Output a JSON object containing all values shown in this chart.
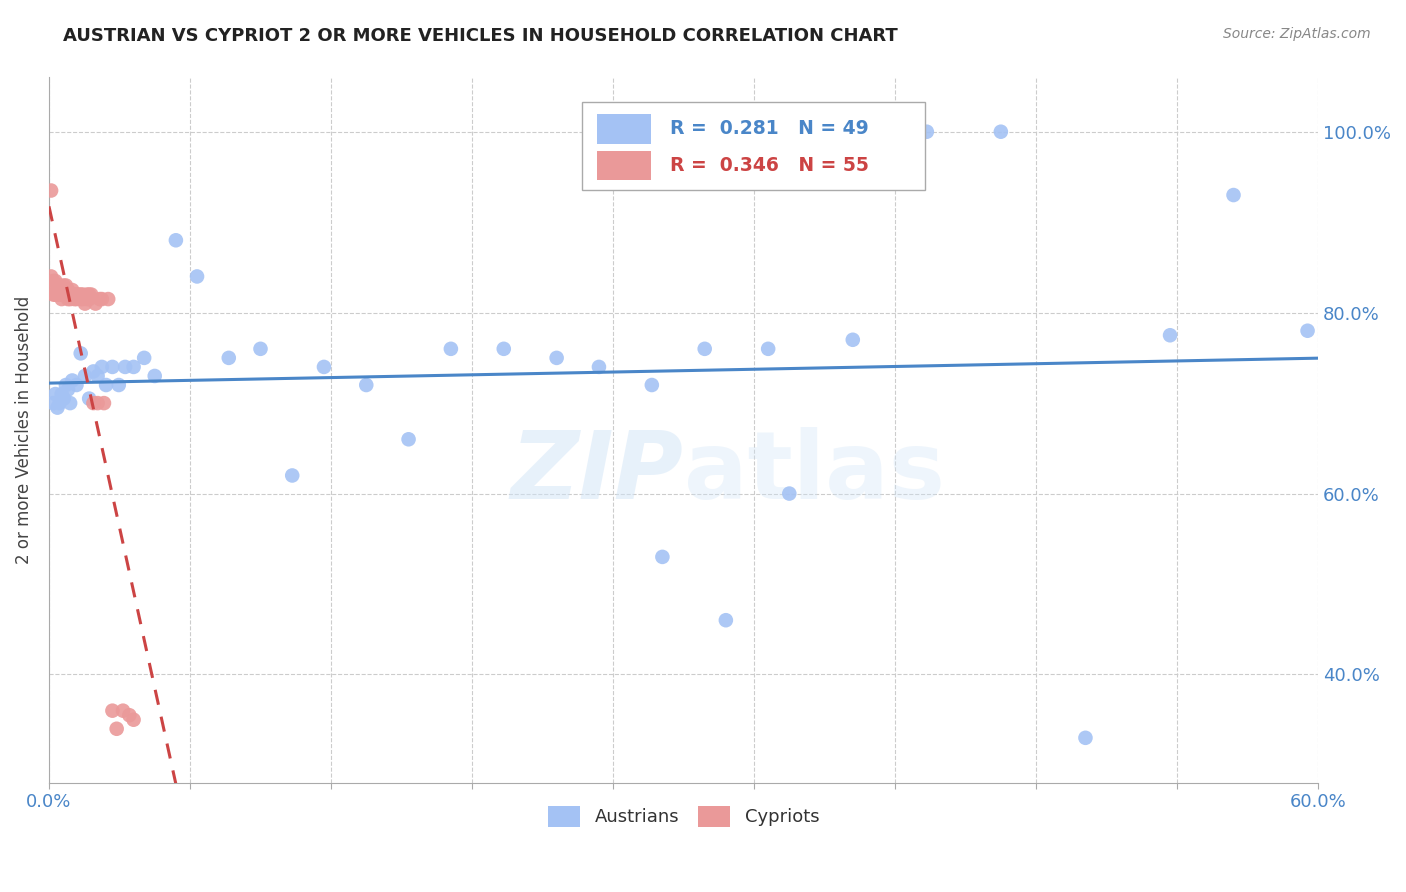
{
  "title": "AUSTRIAN VS CYPRIOT 2 OR MORE VEHICLES IN HOUSEHOLD CORRELATION CHART",
  "source": "Source: ZipAtlas.com",
  "ylabel": "2 or more Vehicles in Household",
  "blue_R": 0.281,
  "blue_N": 49,
  "pink_R": 0.346,
  "pink_N": 55,
  "blue_color": "#a4c2f4",
  "pink_color": "#ea9999",
  "blue_line_color": "#4a86c8",
  "pink_line_color": "#cc4444",
  "watermark": "ZIPatlas",
  "xlim": [
    0.0,
    0.6
  ],
  "ylim": [
    0.28,
    1.06
  ],
  "blue_x": [
    0.002,
    0.003,
    0.004,
    0.005,
    0.006,
    0.007,
    0.008,
    0.009,
    0.01,
    0.011,
    0.013,
    0.015,
    0.017,
    0.019,
    0.021,
    0.023,
    0.025,
    0.027,
    0.03,
    0.033,
    0.036,
    0.04,
    0.045,
    0.05,
    0.06,
    0.07,
    0.085,
    0.1,
    0.115,
    0.13,
    0.15,
    0.17,
    0.19,
    0.215,
    0.24,
    0.26,
    0.285,
    0.31,
    0.34,
    0.38,
    0.415,
    0.45,
    0.49,
    0.53,
    0.56,
    0.595,
    0.29,
    0.32,
    0.35
  ],
  "blue_y": [
    0.7,
    0.71,
    0.695,
    0.7,
    0.71,
    0.705,
    0.72,
    0.715,
    0.7,
    0.725,
    0.72,
    0.755,
    0.73,
    0.705,
    0.735,
    0.73,
    0.74,
    0.72,
    0.74,
    0.72,
    0.74,
    0.74,
    0.75,
    0.73,
    0.88,
    0.84,
    0.75,
    0.76,
    0.62,
    0.74,
    0.72,
    0.66,
    0.76,
    0.76,
    0.75,
    0.74,
    0.72,
    0.76,
    0.76,
    0.77,
    1.0,
    1.0,
    0.33,
    0.775,
    0.93,
    0.78,
    0.53,
    0.46,
    0.6
  ],
  "pink_x": [
    0.001,
    0.001,
    0.002,
    0.002,
    0.002,
    0.003,
    0.003,
    0.003,
    0.004,
    0.004,
    0.004,
    0.005,
    0.005,
    0.005,
    0.006,
    0.006,
    0.007,
    0.007,
    0.007,
    0.008,
    0.008,
    0.008,
    0.009,
    0.009,
    0.01,
    0.01,
    0.011,
    0.011,
    0.012,
    0.012,
    0.013,
    0.013,
    0.014,
    0.015,
    0.015,
    0.016,
    0.016,
    0.017,
    0.018,
    0.018,
    0.019,
    0.019,
    0.02,
    0.021,
    0.022,
    0.023,
    0.024,
    0.025,
    0.026,
    0.028,
    0.03,
    0.032,
    0.035,
    0.038,
    0.04
  ],
  "pink_y": [
    0.84,
    0.935,
    0.82,
    0.835,
    0.825,
    0.82,
    0.835,
    0.82,
    0.825,
    0.83,
    0.82,
    0.825,
    0.83,
    0.82,
    0.825,
    0.815,
    0.82,
    0.83,
    0.82,
    0.825,
    0.83,
    0.82,
    0.815,
    0.825,
    0.82,
    0.815,
    0.82,
    0.825,
    0.815,
    0.82,
    0.82,
    0.815,
    0.82,
    0.82,
    0.815,
    0.82,
    0.815,
    0.81,
    0.82,
    0.815,
    0.82,
    0.815,
    0.82,
    0.7,
    0.81,
    0.7,
    0.815,
    0.815,
    0.7,
    0.815,
    0.36,
    0.34,
    0.36,
    0.355,
    0.35
  ]
}
